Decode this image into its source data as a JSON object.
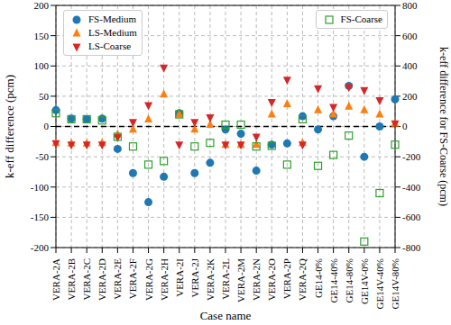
{
  "chart_data": {
    "type": "scatter",
    "x_label": "Case name",
    "y_label": "k-eff difference (pcm)",
    "y2_label": "k-eff difference for FS-Coarse (pcm)",
    "categories": [
      "VERA-2A",
      "VERA-2B",
      "VERA-2C",
      "VERA-2D",
      "VERA-2E",
      "VERA-2F",
      "VERA-2G",
      "VERA-2H",
      "VERA-2I",
      "VERA-2J",
      "VERA-2K",
      "VERA-2L",
      "VERA-2M",
      "VERA-2N",
      "VERA-2O",
      "VERA-2P",
      "VERA-2Q",
      "GE14-0%",
      "GE14-40%",
      "GE14-80%",
      "GE14V-0%",
      "GE14V-40%",
      "GE14V-80%"
    ],
    "series": [
      {
        "name": "FS-Medium",
        "color": "#1f77b4",
        "marker": "circle",
        "values": [
          27,
          13,
          12,
          13,
          -37,
          -77,
          -125,
          -83,
          22,
          -77,
          -60,
          -5,
          -12,
          -73,
          -30,
          -28,
          17,
          -5,
          17,
          67,
          -50,
          0,
          45
        ]
      },
      {
        "name": "LS-Medium",
        "color": "#ff7f0e",
        "marker": "triangle-up",
        "values": [
          -27,
          -28,
          -28,
          -27,
          -13,
          -5,
          12,
          53,
          20,
          -5,
          3,
          -30,
          -30,
          -30,
          20,
          37,
          -27,
          27,
          20,
          33,
          27,
          20,
          5
        ]
      },
      {
        "name": "LS-Coarse",
        "color": "#d62728",
        "marker": "triangle-down",
        "values": [
          -28,
          -30,
          -30,
          -30,
          -18,
          7,
          35,
          97,
          -30,
          7,
          15,
          -30,
          -30,
          -17,
          40,
          77,
          -30,
          63,
          32,
          65,
          60,
          43,
          5
        ]
      },
      {
        "name": "FS-Coarse",
        "color": "#2ca02c",
        "marker": "square",
        "axis": "y2",
        "values": [
          88,
          48,
          48,
          40,
          -68,
          -132,
          -252,
          -228,
          80,
          -132,
          -108,
          12,
          12,
          -132,
          -128,
          -252,
          48,
          -260,
          -188,
          -60,
          -760,
          -440,
          -120
        ]
      }
    ],
    "ylim": [
      -200,
      200
    ],
    "yticks": [
      -200,
      -150,
      -100,
      -50,
      0,
      50,
      100,
      150,
      200
    ],
    "y2lim": [
      -800,
      800
    ],
    "y2ticks": [
      -800,
      -600,
      -400,
      -200,
      0,
      200,
      400,
      600,
      800
    ],
    "hline": 0,
    "grid": true,
    "legend": "upper left"
  }
}
